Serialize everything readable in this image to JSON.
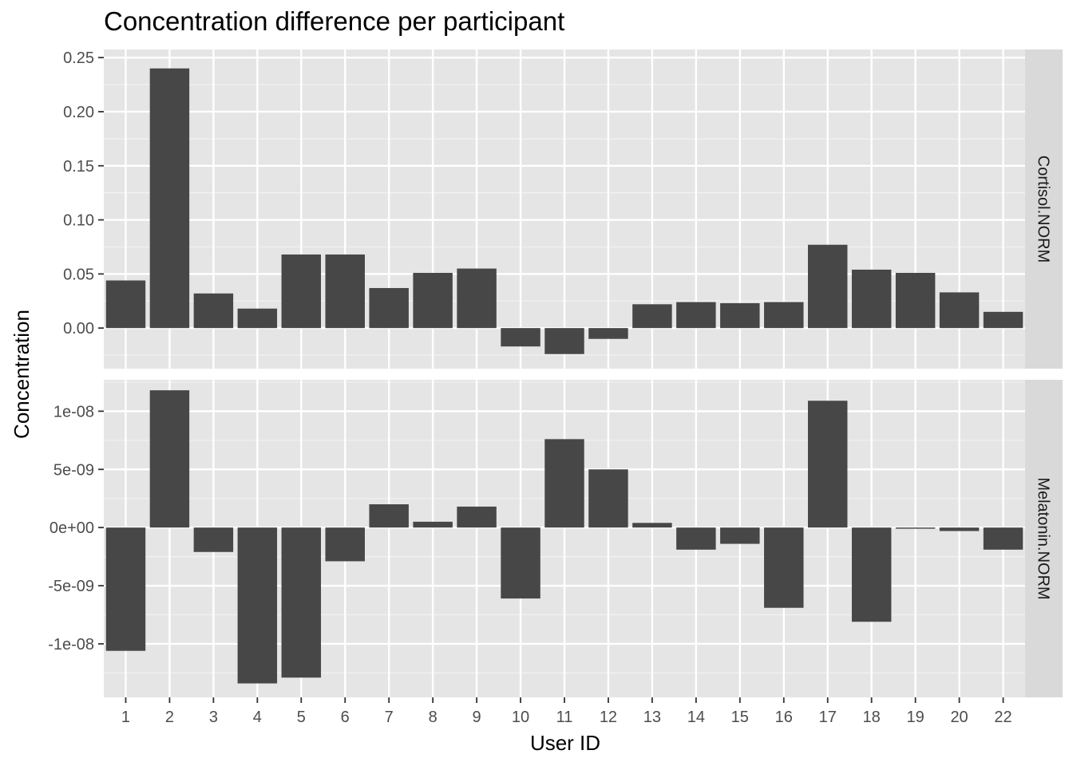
{
  "chart_data": {
    "type": "bar",
    "title": "Concentration difference per participant",
    "xlabel": "User ID",
    "ylabel": "Concentration",
    "categories": [
      "1",
      "2",
      "3",
      "4",
      "5",
      "6",
      "7",
      "8",
      "9",
      "10",
      "11",
      "12",
      "13",
      "14",
      "15",
      "16",
      "17",
      "18",
      "19",
      "20",
      "22"
    ],
    "bar_color": "#474747",
    "panel_background": "#e5e5e5",
    "strip_background": "#d9d9d9",
    "grid": true,
    "facets": [
      {
        "name": "Cortisol.NORM",
        "ylim": [
          -0.0375,
          0.2575
        ],
        "y_ticks": [
          0,
          0.05,
          0.1,
          0.15,
          0.2,
          0.25
        ],
        "y_tick_labels": [
          "0.00",
          "0.05",
          "0.10",
          "0.15",
          "0.20",
          "0.25"
        ],
        "values": [
          0.044,
          0.24,
          0.032,
          0.018,
          0.068,
          0.068,
          0.037,
          0.051,
          0.055,
          -0.017,
          -0.024,
          -0.01,
          0.022,
          0.024,
          0.023,
          0.024,
          0.077,
          0.054,
          0.051,
          0.033,
          0.015
        ]
      },
      {
        "name": "Melatonin.NORM",
        "ylim": [
          -1.46e-08,
          1.27e-08
        ],
        "y_ticks": [
          -1e-08,
          -5e-09,
          0,
          5e-09,
          1e-08
        ],
        "y_tick_labels": [
          "-1e-08",
          "-5e-09",
          "0e+00",
          "5e-09",
          "1e-08"
        ],
        "values": [
          -1.06e-08,
          1.18e-08,
          -2.1e-09,
          -1.34e-08,
          -1.29e-08,
          -2.9e-09,
          2e-09,
          5e-10,
          1.8e-09,
          -6.1e-09,
          7.6e-09,
          5e-09,
          4e-10,
          -1.9e-09,
          -1.4e-09,
          -6.9e-09,
          1.09e-08,
          -8.1e-09,
          -1e-10,
          -3e-10,
          -1.9e-09
        ]
      }
    ]
  }
}
